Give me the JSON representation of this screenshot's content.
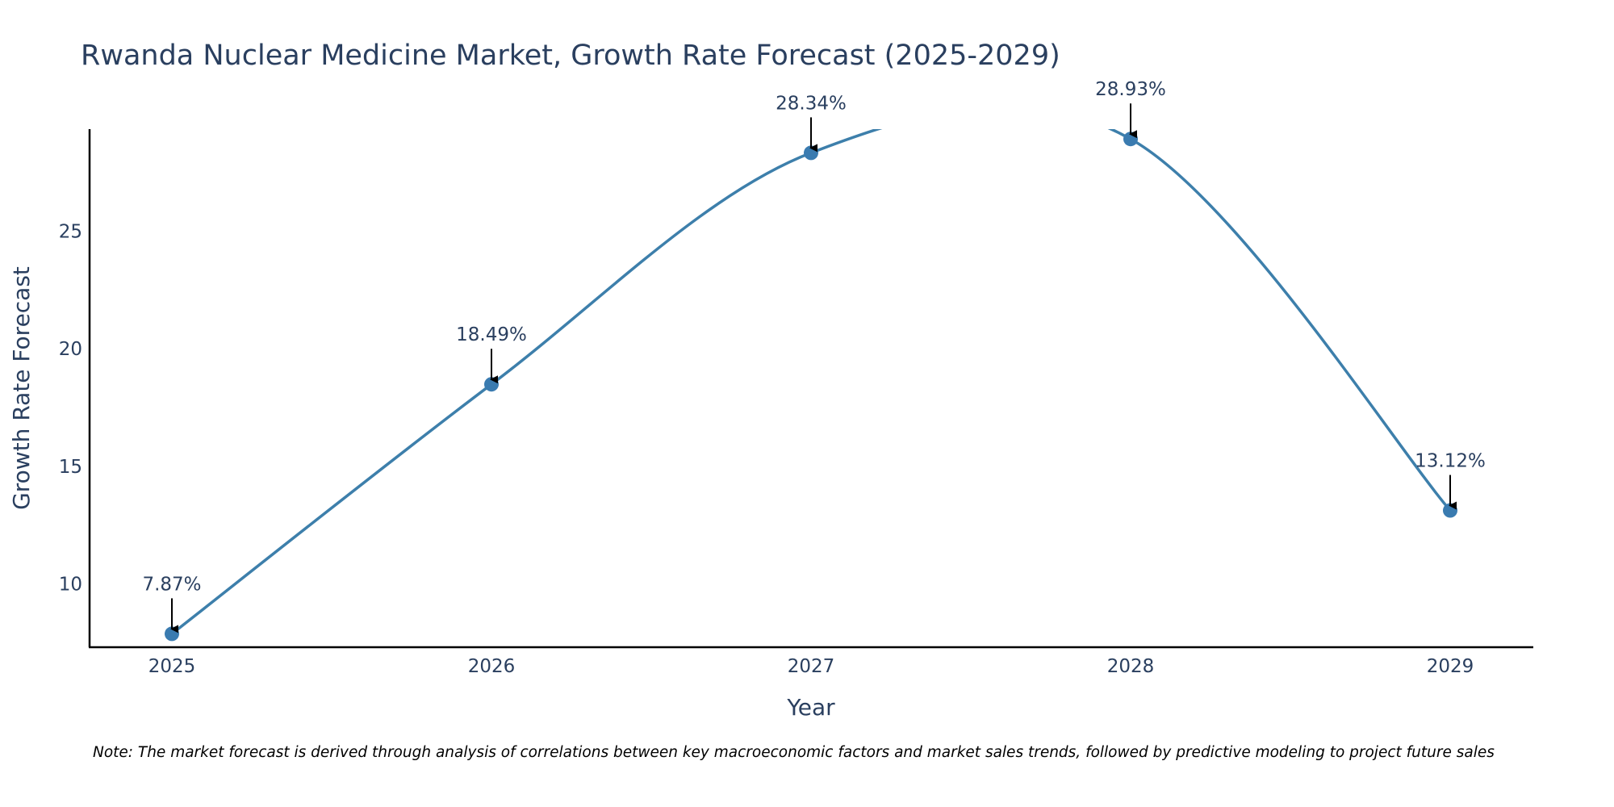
{
  "chart_data": {
    "type": "line",
    "title": "Rwanda Nuclear Medicine Market, Growth Rate Forecast (2025-2029)",
    "xlabel": "Year",
    "ylabel": "Growth Rate Forecast",
    "categories": [
      "2025",
      "2026",
      "2027",
      "2028",
      "2029"
    ],
    "series": [
      {
        "name": "Growth Rate Forecast",
        "values": [
          7.87,
          18.49,
          28.34,
          28.93,
          13.12
        ]
      }
    ],
    "data_labels": [
      "7.87%",
      "18.49%",
      "28.34%",
      "28.93%",
      "13.12%"
    ],
    "y_ticks": [
      "10",
      "15",
      "20",
      "25"
    ],
    "y_tick_values": [
      10,
      15,
      20,
      25
    ],
    "ylim": [
      7.3,
      29.35
    ],
    "grid": false,
    "legend": "none",
    "line_color": "#3d7fab",
    "marker_color": "#3a7bb0",
    "arrow_color": "#000000",
    "note": "Note: The market forecast is derived through analysis of correlations between key macroeconomic factors and market sales trends, followed by predictive modeling to project future sales"
  }
}
